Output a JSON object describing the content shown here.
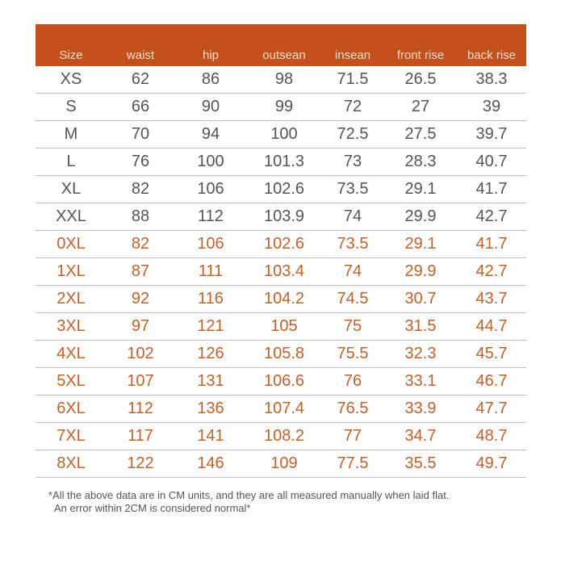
{
  "headers": [
    "Size",
    "waist",
    "hip",
    "outsean",
    "insean",
    "front rise",
    "back rise"
  ],
  "rows": [
    {
      "cells": [
        "XS",
        "62",
        "86",
        "98",
        "71.5",
        "26.5",
        "38.3"
      ],
      "highlight": false
    },
    {
      "cells": [
        "S",
        "66",
        "90",
        "99",
        "72",
        "27",
        "39"
      ],
      "highlight": false
    },
    {
      "cells": [
        "M",
        "70",
        "94",
        "100",
        "72.5",
        "27.5",
        "39.7"
      ],
      "highlight": false
    },
    {
      "cells": [
        "L",
        "76",
        "100",
        "101.3",
        "73",
        "28.3",
        "40.7"
      ],
      "highlight": false
    },
    {
      "cells": [
        "XL",
        "82",
        "106",
        "102.6",
        "73.5",
        "29.1",
        "41.7"
      ],
      "highlight": false
    },
    {
      "cells": [
        "XXL",
        "88",
        "112",
        "103.9",
        "74",
        "29.9",
        "42.7"
      ],
      "highlight": false
    },
    {
      "cells": [
        "0XL",
        "82",
        "106",
        "102.6",
        "73.5",
        "29.1",
        "41.7"
      ],
      "highlight": true
    },
    {
      "cells": [
        "1XL",
        "87",
        "111",
        "103.4",
        "74",
        "29.9",
        "42.7"
      ],
      "highlight": true
    },
    {
      "cells": [
        "2XL",
        "92",
        "116",
        "104.2",
        "74.5",
        "30.7",
        "43.7"
      ],
      "highlight": true
    },
    {
      "cells": [
        "3XL",
        "97",
        "121",
        "105",
        "75",
        "31.5",
        "44.7"
      ],
      "highlight": true
    },
    {
      "cells": [
        "4XL",
        "102",
        "126",
        "105.8",
        "75.5",
        "32.3",
        "45.7"
      ],
      "highlight": true
    },
    {
      "cells": [
        "5XL",
        "107",
        "131",
        "106.6",
        "76",
        "33.1",
        "46.7"
      ],
      "highlight": true
    },
    {
      "cells": [
        "6XL",
        "112",
        "136",
        "107.4",
        "76.5",
        "33.9",
        "47.7"
      ],
      "highlight": true
    },
    {
      "cells": [
        "7XL",
        "117",
        "141",
        "108.2",
        "77",
        "34.7",
        "48.7"
      ],
      "highlight": true
    },
    {
      "cells": [
        "8XL",
        "122",
        "146",
        "109",
        "77.5",
        "35.5",
        "49.7"
      ],
      "highlight": true
    }
  ],
  "note": {
    "line1": "*All the above data are in CM units, and they are all measured manually when laid flat.",
    "line2": "An error within 2CM is considered normal*"
  },
  "colors": {
    "header_bg": "#c4501e",
    "highlight_text": "#c0612b",
    "text": "#555555"
  }
}
